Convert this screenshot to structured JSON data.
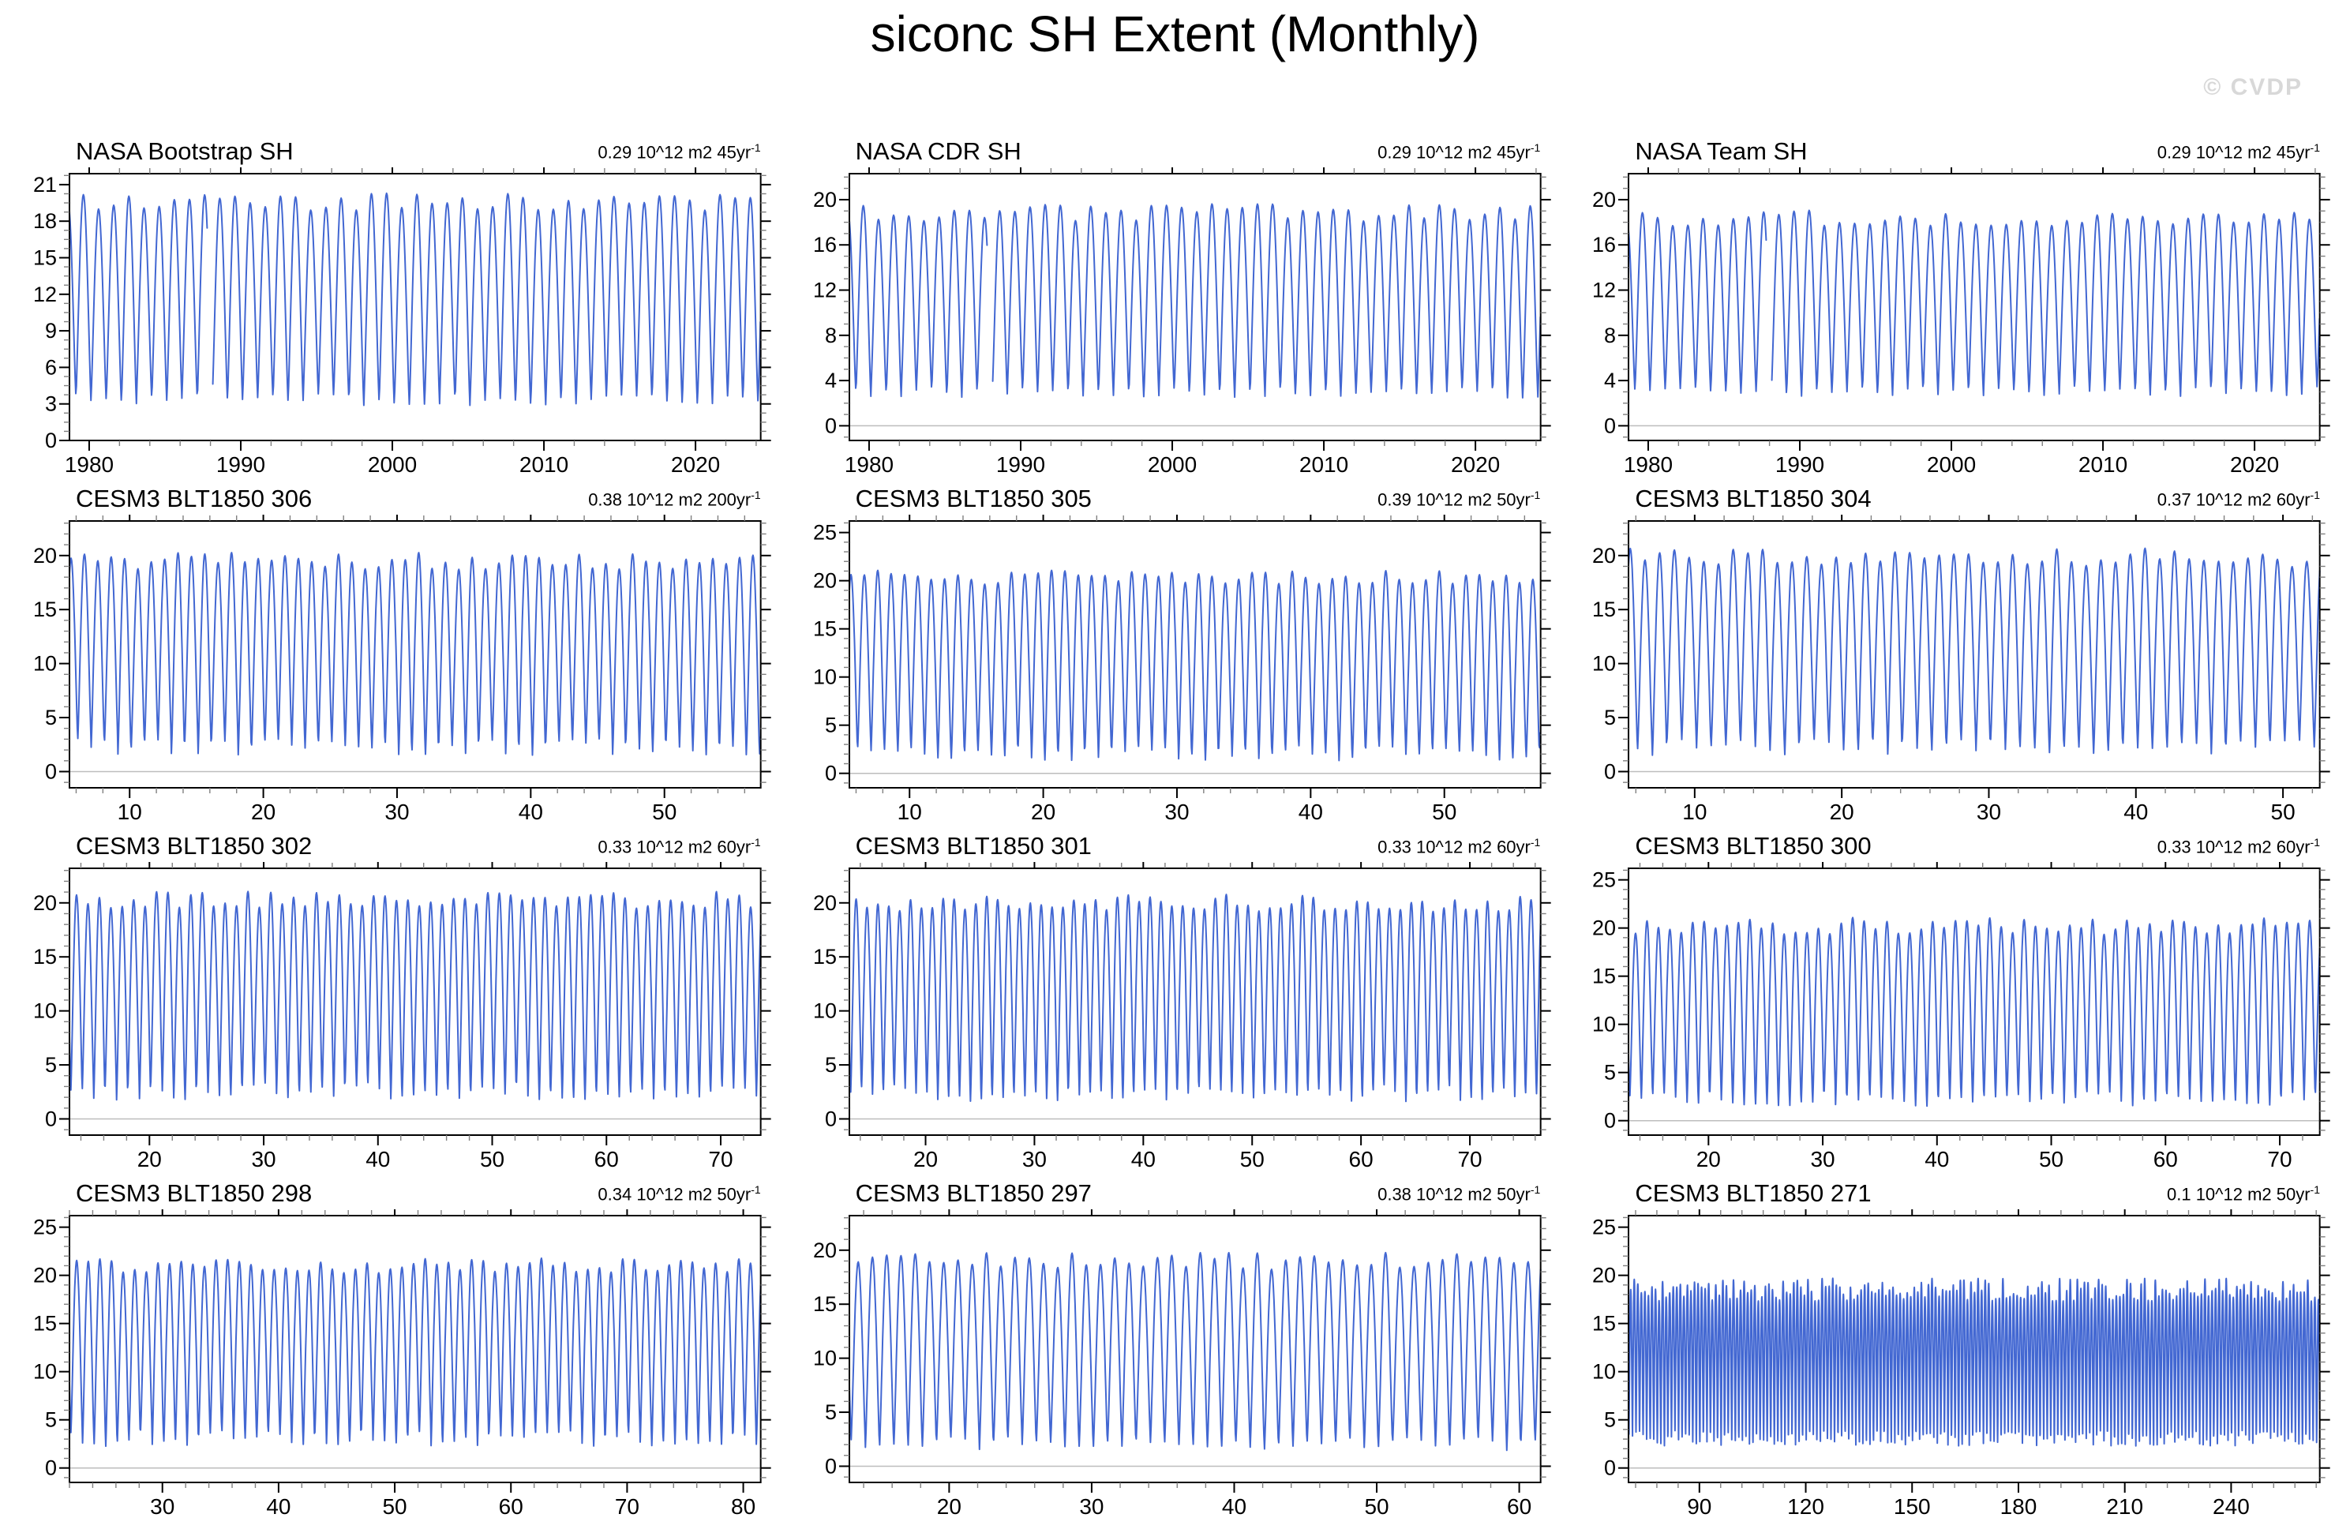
{
  "page_title": "siconc SH Extent (Monthly)",
  "watermark": "© CVDP",
  "colors": {
    "line": "#4267d2",
    "zero_line": "#bdbdbd",
    "frame": "#000000",
    "minor_tick": "#808080",
    "watermark": "#d8d8d8"
  },
  "chart_data": [
    {
      "type": "line",
      "title": "NASA Bootstrap SH",
      "trend": "0.29 10^12 m2 45yr",
      "trend_sup": "-1",
      "x": {
        "min": 1978.7,
        "max": 2024.3,
        "tick_start": 1980,
        "tick_end": 2020,
        "tick_step": 10,
        "minor_step": 2
      },
      "y": {
        "min": 0,
        "max": 21.9,
        "tick_start": 0,
        "tick_end": 21,
        "tick_step": 3,
        "minor_step": 0.75
      },
      "zero_line": true,
      "series": {
        "kind": "seasonal_cycle",
        "annual_min": 3.3,
        "annual_max": 19.6,
        "min_jitter": 0.5,
        "max_jitter": 0.7,
        "points_per_year": 24,
        "sharpness": 0.62,
        "gap": [
          1987.8,
          1988.15
        ],
        "seed": 1
      }
    },
    {
      "type": "line",
      "title": "NASA CDR SH",
      "trend": "0.29 10^12 m2 45yr",
      "trend_sup": "-1",
      "x": {
        "min": 1978.7,
        "max": 2024.3,
        "tick_start": 1980,
        "tick_end": 2020,
        "tick_step": 10,
        "minor_step": 2
      },
      "y": {
        "min": -1.3,
        "max": 22.3,
        "tick_start": 0,
        "tick_end": 20,
        "tick_step": 4,
        "minor_step": 1
      },
      "zero_line": true,
      "series": {
        "kind": "seasonal_cycle",
        "annual_min": 2.9,
        "annual_max": 18.9,
        "min_jitter": 0.5,
        "max_jitter": 0.8,
        "points_per_year": 24,
        "sharpness": 0.62,
        "gap": [
          1987.8,
          1988.15
        ],
        "seed": 2
      }
    },
    {
      "type": "line",
      "title": "NASA Team SH",
      "trend": "0.29 10^12 m2 45yr",
      "trend_sup": "-1",
      "x": {
        "min": 1978.7,
        "max": 2024.3,
        "tick_start": 1980,
        "tick_end": 2020,
        "tick_step": 10,
        "minor_step": 2
      },
      "y": {
        "min": -1.3,
        "max": 22.3,
        "tick_start": 0,
        "tick_end": 20,
        "tick_step": 4,
        "minor_step": 1
      },
      "zero_line": true,
      "series": {
        "kind": "seasonal_cycle",
        "annual_min": 3.0,
        "annual_max": 18.4,
        "min_jitter": 0.5,
        "max_jitter": 0.7,
        "points_per_year": 24,
        "sharpness": 0.62,
        "gap": [
          1987.8,
          1988.15
        ],
        "seed": 3
      }
    },
    {
      "type": "line",
      "title": "CESM3 BLT1850 306",
      "trend": "0.38 10^12 m2 200yr",
      "trend_sup": "-1",
      "x": {
        "min": 5.5,
        "max": 57.2,
        "tick_start": 10,
        "tick_end": 50,
        "tick_step": 10,
        "minor_step": 2
      },
      "y": {
        "min": -1.5,
        "max": 23.2,
        "tick_start": 0,
        "tick_end": 20,
        "tick_step": 5,
        "minor_step": 1
      },
      "zero_line": true,
      "series": {
        "kind": "seasonal_cycle",
        "annual_min": 2.2,
        "annual_max": 19.5,
        "min_jitter": 0.8,
        "max_jitter": 0.8,
        "points_per_year": 24,
        "sharpness": 0.62,
        "seed": 4
      }
    },
    {
      "type": "line",
      "title": "CESM3 BLT1850 305",
      "trend": "0.39 10^12 m2 50yr",
      "trend_sup": "-1",
      "x": {
        "min": 5.5,
        "max": 57.2,
        "tick_start": 10,
        "tick_end": 50,
        "tick_step": 10,
        "minor_step": 2
      },
      "y": {
        "min": -1.5,
        "max": 26.2,
        "tick_start": 0,
        "tick_end": 25,
        "tick_step": 5,
        "minor_step": 1
      },
      "zero_line": true,
      "series": {
        "kind": "seasonal_cycle",
        "annual_min": 2.0,
        "annual_max": 20.3,
        "min_jitter": 0.8,
        "max_jitter": 0.8,
        "points_per_year": 24,
        "sharpness": 0.62,
        "seed": 5
      }
    },
    {
      "type": "line",
      "title": "CESM3 BLT1850 304",
      "trend": "0.37 10^12 m2 60yr",
      "trend_sup": "-1",
      "x": {
        "min": 5.5,
        "max": 52.5,
        "tick_start": 10,
        "tick_end": 50,
        "tick_step": 10,
        "minor_step": 2
      },
      "y": {
        "min": -1.5,
        "max": 23.2,
        "tick_start": 0,
        "tick_end": 20,
        "tick_step": 5,
        "minor_step": 1
      },
      "zero_line": true,
      "series": {
        "kind": "seasonal_cycle",
        "annual_min": 2.2,
        "annual_max": 19.8,
        "min_jitter": 0.8,
        "max_jitter": 0.9,
        "points_per_year": 24,
        "sharpness": 0.62,
        "seed": 6
      }
    },
    {
      "type": "line",
      "title": "CESM3 BLT1850 302",
      "trend": "0.33 10^12 m2 60yr",
      "trend_sup": "-1",
      "x": {
        "min": 13,
        "max": 73.5,
        "tick_start": 20,
        "tick_end": 70,
        "tick_step": 10,
        "minor_step": 2
      },
      "y": {
        "min": -1.5,
        "max": 23.2,
        "tick_start": 0,
        "tick_end": 20,
        "tick_step": 5,
        "minor_step": 1
      },
      "zero_line": true,
      "series": {
        "kind": "seasonal_cycle",
        "annual_min": 2.5,
        "annual_max": 20.3,
        "min_jitter": 0.9,
        "max_jitter": 0.8,
        "points_per_year": 24,
        "sharpness": 0.62,
        "seed": 7
      }
    },
    {
      "type": "line",
      "title": "CESM3 BLT1850 301",
      "trend": "0.33 10^12 m2 60yr",
      "trend_sup": "-1",
      "x": {
        "min": 13,
        "max": 76.5,
        "tick_start": 20,
        "tick_end": 70,
        "tick_step": 10,
        "minor_step": 2
      },
      "y": {
        "min": -1.5,
        "max": 23.2,
        "tick_start": 0,
        "tick_end": 20,
        "tick_step": 5,
        "minor_step": 1
      },
      "zero_line": true,
      "series": {
        "kind": "seasonal_cycle",
        "annual_min": 2.3,
        "annual_max": 20.0,
        "min_jitter": 0.8,
        "max_jitter": 0.8,
        "points_per_year": 24,
        "sharpness": 0.62,
        "seed": 8
      }
    },
    {
      "type": "line",
      "title": "CESM3 BLT1850 300",
      "trend": "0.33 10^12 m2 60yr",
      "trend_sup": "-1",
      "x": {
        "min": 13,
        "max": 73.5,
        "tick_start": 20,
        "tick_end": 70,
        "tick_step": 10,
        "minor_step": 2
      },
      "y": {
        "min": -1.5,
        "max": 26.2,
        "tick_start": 0,
        "tick_end": 25,
        "tick_step": 5,
        "minor_step": 1
      },
      "zero_line": true,
      "series": {
        "kind": "seasonal_cycle",
        "annual_min": 2.2,
        "annual_max": 20.2,
        "min_jitter": 0.8,
        "max_jitter": 0.9,
        "points_per_year": 24,
        "sharpness": 0.62,
        "seed": 9
      }
    },
    {
      "type": "line",
      "title": "CESM3 BLT1850 298",
      "trend": "0.34 10^12 m2 50yr",
      "trend_sup": "-1",
      "x": {
        "min": 22,
        "max": 81.5,
        "tick_start": 30,
        "tick_end": 80,
        "tick_step": 10,
        "minor_step": 2
      },
      "y": {
        "min": -1.5,
        "max": 26.2,
        "tick_start": 0,
        "tick_end": 25,
        "tick_step": 5,
        "minor_step": 1
      },
      "zero_line": true,
      "series": {
        "kind": "seasonal_cycle",
        "annual_min": 3.0,
        "annual_max": 21.0,
        "min_jitter": 0.9,
        "max_jitter": 0.8,
        "points_per_year": 24,
        "sharpness": 0.62,
        "seed": 10
      }
    },
    {
      "type": "line",
      "title": "CESM3 BLT1850 297",
      "trend": "0.38 10^12 m2 50yr",
      "trend_sup": "-1",
      "x": {
        "min": 13,
        "max": 61.5,
        "tick_start": 20,
        "tick_end": 60,
        "tick_step": 10,
        "minor_step": 2
      },
      "y": {
        "min": -1.5,
        "max": 23.2,
        "tick_start": 0,
        "tick_end": 20,
        "tick_step": 5,
        "minor_step": 1
      },
      "zero_line": true,
      "series": {
        "kind": "seasonal_cycle",
        "annual_min": 2.0,
        "annual_max": 19.0,
        "min_jitter": 0.7,
        "max_jitter": 0.8,
        "points_per_year": 24,
        "sharpness": 0.62,
        "seed": 11
      }
    },
    {
      "type": "line",
      "title": "CESM3 BLT1850 271",
      "trend": "0.1 10^12 m2 50yr",
      "trend_sup": "-1",
      "x": {
        "min": 70,
        "max": 265,
        "tick_start": 90,
        "tick_end": 240,
        "tick_step": 30,
        "minor_step": 6
      },
      "y": {
        "min": -1.5,
        "max": 26.2,
        "tick_start": 0,
        "tick_end": 25,
        "tick_step": 5,
        "minor_step": 1
      },
      "zero_line": true,
      "series": {
        "kind": "seasonal_cycle",
        "annual_min": 3.0,
        "annual_max": 18.5,
        "min_jitter": 0.8,
        "max_jitter": 1.2,
        "points_per_year": 24,
        "sharpness": 0.62,
        "seed": 12
      }
    }
  ]
}
